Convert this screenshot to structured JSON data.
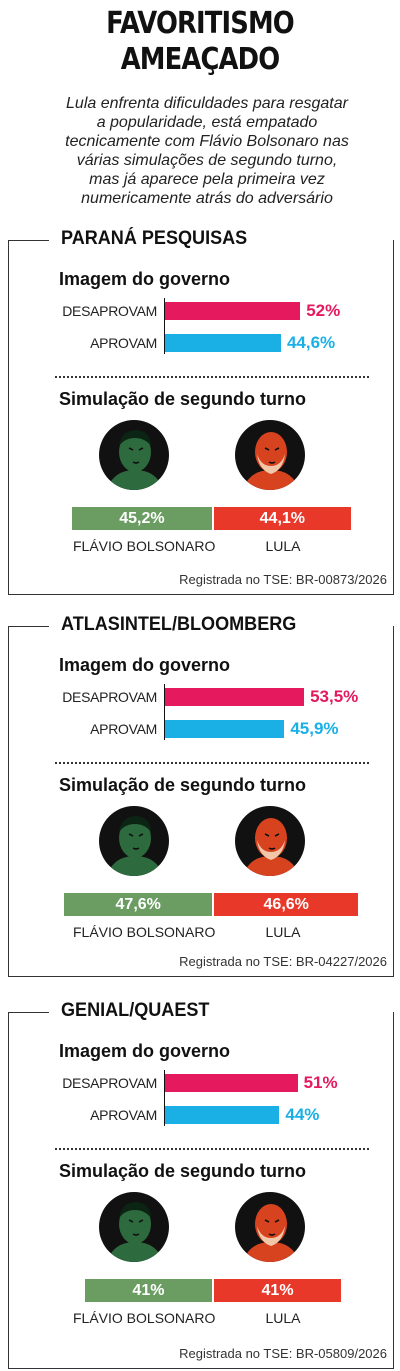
{
  "header": {
    "title_line1": "FAVORITISMO",
    "title_line2": "AMEAÇADO",
    "subtitle_lines": [
      "Lula enfrenta dificuldades para resgatar",
      "a popularidade, está empatado",
      "tecnicamente com Flávio Bolsonaro nas",
      "várias simulações de segundo turno,",
      "mas já aparece pela primeira vez",
      "numericamente atrás do adversário"
    ]
  },
  "colors": {
    "desaprovam": "#e5195e",
    "aprovam": "#1ab0e6",
    "flavio": "#6b9d63",
    "lula": "#e8382a",
    "portrait_flavio": "#2d6a3e",
    "portrait_lula": "#d8431f"
  },
  "icons": [
    "flavio-bolsonaro-portrait",
    "lula-portrait"
  ],
  "chart_data": [
    {
      "type": "bar",
      "panel_title": "PARANÁ PESQUISAS",
      "section1_title": "Imagem do governo",
      "categories": [
        "DESAPROVAM",
        "APROVAM"
      ],
      "values": [
        52,
        44.6
      ],
      "value_labels": [
        "52%",
        "44,6%"
      ],
      "section2_title": "Simulação de segundo turno",
      "candidates": [
        "FLÁVIO BOLSONARO",
        "LULA"
      ],
      "candidate_values": [
        45.2,
        44.1
      ],
      "candidate_labels": [
        "45,2%",
        "44,1%"
      ],
      "registration": "Registrada no TSE: BR-00873/2026"
    },
    {
      "type": "bar",
      "panel_title": "ATLASINTEL/BLOOMBERG",
      "section1_title": "Imagem do governo",
      "categories": [
        "DESAPROVAM",
        "APROVAM"
      ],
      "values": [
        53.5,
        45.9
      ],
      "value_labels": [
        "53,5%",
        "45,9%"
      ],
      "section2_title": "Simulação de segundo turno",
      "candidates": [
        "FLÁVIO BOLSONARO",
        "LULA"
      ],
      "candidate_values": [
        47.6,
        46.6
      ],
      "candidate_labels": [
        "47,6%",
        "46,6%"
      ],
      "registration": "Registrada no TSE: BR-04227/2026"
    },
    {
      "type": "bar",
      "panel_title": "GENIAL/QUAEST",
      "section1_title": "Imagem do governo",
      "categories": [
        "DESAPROVAM",
        "APROVAM"
      ],
      "values": [
        51,
        44
      ],
      "value_labels": [
        "51%",
        "44%"
      ],
      "section2_title": "Simulação de segundo turno",
      "candidates": [
        "FLÁVIO BOLSONARO",
        "LULA"
      ],
      "candidate_values": [
        41,
        41
      ],
      "candidate_labels": [
        "41%",
        "41%"
      ],
      "registration": "Registrada no TSE: BR-05809/2026"
    }
  ]
}
